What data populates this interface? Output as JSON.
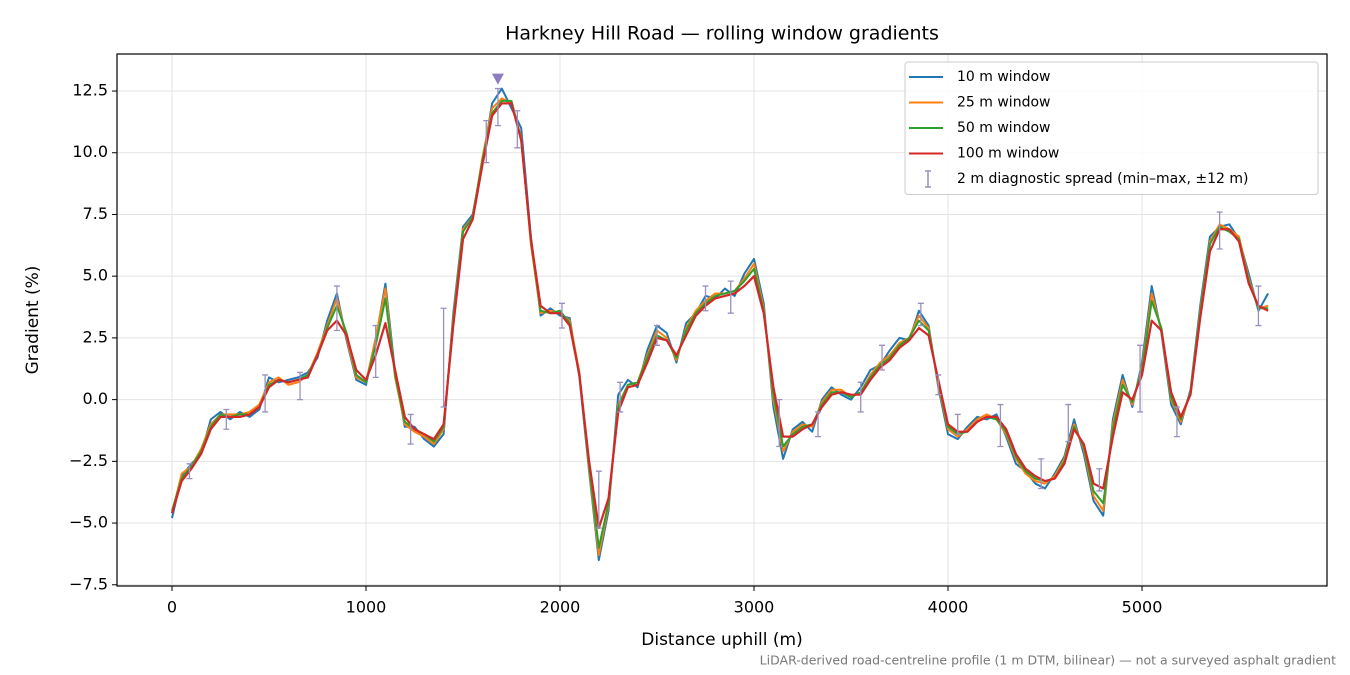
{
  "chart_data": {
    "type": "line",
    "title": "Harkney Hill Road — rolling window gradients",
    "x_label": "Distance uphill (m)",
    "y_label": "Gradient (%)",
    "note": "LiDAR-derived road-centreline profile (1 m DTM, bilinear) — not a surveyed asphalt gradient",
    "xlim": [
      -283.5,
      5953.5
    ],
    "ylim": [
      -7.55,
      14.0
    ],
    "xticks": [
      0,
      1000,
      2000,
      3000,
      4000,
      5000
    ],
    "yticks": [
      {
        "value": -7.5,
        "label": "−7.5"
      },
      {
        "value": -5,
        "label": "−5.0"
      },
      {
        "value": -2.5,
        "label": "−2.5"
      },
      {
        "value": 0,
        "label": "0.0"
      },
      {
        "value": 2.5,
        "label": "2.5"
      },
      {
        "value": 5,
        "label": "5.0"
      },
      {
        "value": 7.5,
        "label": "7.5"
      },
      {
        "value": 10,
        "label": "10.0"
      },
      {
        "value": 12.5,
        "label": "12.5"
      }
    ],
    "grid": true,
    "legend": "upper right",
    "x": [
      0,
      50,
      100,
      150,
      200,
      250,
      300,
      350,
      400,
      450,
      500,
      550,
      600,
      650,
      700,
      750,
      800,
      850,
      900,
      950,
      1000,
      1050,
      1100,
      1150,
      1200,
      1250,
      1300,
      1350,
      1400,
      1450,
      1500,
      1550,
      1600,
      1650,
      1700,
      1750,
      1800,
      1850,
      1900,
      1950,
      2000,
      2050,
      2100,
      2150,
      2200,
      2250,
      2300,
      2350,
      2400,
      2450,
      2500,
      2550,
      2600,
      2650,
      2700,
      2750,
      2800,
      2850,
      2900,
      2950,
      3000,
      3050,
      3100,
      3150,
      3200,
      3250,
      3300,
      3350,
      3400,
      3450,
      3500,
      3550,
      3600,
      3650,
      3700,
      3750,
      3800,
      3850,
      3900,
      3950,
      4000,
      4050,
      4100,
      4150,
      4200,
      4250,
      4300,
      4350,
      4400,
      4450,
      4500,
      4550,
      4600,
      4650,
      4700,
      4750,
      4800,
      4850,
      4900,
      4950,
      5000,
      5050,
      5100,
      5150,
      5200,
      5250,
      5300,
      5350,
      5400,
      5450,
      5500,
      5550,
      5600,
      5650
    ],
    "series": [
      {
        "name": "10 m window",
        "color": "#1f77b4",
        "values": [
          -4.8,
          -3.1,
          -2.6,
          -2.2,
          -0.8,
          -0.5,
          -0.8,
          -0.5,
          -0.7,
          -0.4,
          0.9,
          0.7,
          0.8,
          0.9,
          1.1,
          1.7,
          3.2,
          4.3,
          2.4,
          0.8,
          0.6,
          2.4,
          4.7,
          1.1,
          -1.1,
          -1.1,
          -1.6,
          -1.9,
          -1.4,
          3.5,
          7.0,
          7.5,
          9.6,
          12.0,
          12.6,
          11.8,
          11.0,
          6.6,
          3.4,
          3.7,
          3.4,
          3.3,
          0.9,
          -2.9,
          -6.5,
          -4.5,
          0.2,
          0.8,
          0.5,
          2.0,
          3.0,
          2.7,
          1.5,
          3.1,
          3.5,
          4.2,
          4.1,
          4.5,
          4.2,
          5.1,
          5.7,
          3.9,
          -0.3,
          -2.4,
          -1.2,
          -0.9,
          -1.3,
          0.0,
          0.5,
          0.2,
          0.0,
          0.5,
          1.2,
          1.4,
          2.0,
          2.5,
          2.4,
          3.6,
          3.0,
          0.5,
          -1.4,
          -1.6,
          -1.1,
          -0.7,
          -0.8,
          -0.6,
          -1.5,
          -2.6,
          -2.9,
          -3.4,
          -3.6,
          -3.0,
          -2.3,
          -0.8,
          -2.2,
          -4.1,
          -4.7,
          -0.8,
          1.0,
          -0.3,
          1.5,
          4.6,
          2.7,
          -0.2,
          -1.0,
          0.4,
          3.8,
          6.6,
          7.0,
          7.1,
          6.5,
          5.1,
          3.6,
          4.3
        ]
      },
      {
        "name": "25 m window",
        "color": "#ff7f0e",
        "values": [
          -4.6,
          -3.0,
          -2.7,
          -2.0,
          -1.0,
          -0.6,
          -0.6,
          -0.6,
          -0.5,
          -0.2,
          0.7,
          0.9,
          0.6,
          0.7,
          1.0,
          1.9,
          3.0,
          4.1,
          2.5,
          0.9,
          0.7,
          2.5,
          4.5,
          0.9,
          -1.0,
          -1.3,
          -1.5,
          -1.8,
          -1.2,
          3.3,
          6.9,
          7.4,
          9.8,
          11.8,
          12.2,
          12.0,
          10.6,
          6.3,
          3.5,
          3.6,
          3.5,
          3.2,
          1.1,
          -2.8,
          -6.3,
          -4.3,
          -0.2,
          0.6,
          0.7,
          1.8,
          2.8,
          2.5,
          1.6,
          2.9,
          3.6,
          4.0,
          4.3,
          4.3,
          4.4,
          4.9,
          5.5,
          3.7,
          0.0,
          -2.1,
          -1.3,
          -1.0,
          -1.1,
          -0.1,
          0.4,
          0.4,
          0.1,
          0.3,
          1.0,
          1.5,
          1.8,
          2.3,
          2.5,
          3.4,
          2.9,
          0.6,
          -1.2,
          -1.5,
          -1.2,
          -0.8,
          -0.6,
          -0.8,
          -1.4,
          -2.4,
          -3.0,
          -3.3,
          -3.4,
          -3.1,
          -2.4,
          -1.0,
          -2.0,
          -3.9,
          -4.5,
          -1.0,
          0.8,
          -0.2,
          1.3,
          4.3,
          2.8,
          0.0,
          -0.9,
          0.3,
          3.6,
          6.4,
          7.1,
          6.9,
          6.6,
          4.9,
          3.7,
          3.8
        ]
      },
      {
        "name": "50 m window",
        "color": "#2ca02c",
        "values": [
          -4.5,
          -3.2,
          -2.7,
          -2.1,
          -1.1,
          -0.6,
          -0.7,
          -0.6,
          -0.6,
          -0.3,
          0.6,
          0.8,
          0.7,
          0.8,
          1.0,
          1.8,
          2.9,
          3.8,
          2.7,
          1.0,
          0.7,
          2.2,
          4.1,
          1.0,
          -0.9,
          -1.2,
          -1.4,
          -1.7,
          -1.1,
          3.2,
          6.8,
          7.4,
          9.7,
          11.6,
          12.1,
          12.1,
          10.5,
          6.4,
          3.6,
          3.5,
          3.6,
          3.1,
          1.0,
          -2.7,
          -6.0,
          -4.2,
          -0.3,
          0.6,
          0.7,
          1.7,
          2.6,
          2.4,
          1.7,
          2.8,
          3.5,
          3.9,
          4.2,
          4.3,
          4.4,
          4.8,
          5.3,
          3.6,
          0.2,
          -1.9,
          -1.4,
          -1.1,
          -1.0,
          -0.2,
          0.3,
          0.3,
          0.1,
          0.3,
          0.9,
          1.4,
          1.7,
          2.2,
          2.5,
          3.2,
          2.8,
          0.7,
          -1.1,
          -1.4,
          -1.3,
          -0.9,
          -0.7,
          -0.8,
          -1.3,
          -2.3,
          -2.9,
          -3.2,
          -3.3,
          -3.2,
          -2.5,
          -1.1,
          -1.9,
          -3.7,
          -4.2,
          -1.2,
          0.6,
          -0.1,
          1.2,
          4.0,
          2.9,
          0.1,
          -0.8,
          0.3,
          3.5,
          6.3,
          7.0,
          6.8,
          6.5,
          4.8,
          3.7,
          3.7
        ]
      },
      {
        "name": "100 m window",
        "color": "#d62728",
        "values": [
          -4.6,
          -3.3,
          -2.8,
          -2.2,
          -1.2,
          -0.7,
          -0.7,
          -0.7,
          -0.6,
          -0.3,
          0.5,
          0.8,
          0.7,
          0.8,
          0.9,
          1.8,
          2.8,
          3.2,
          2.6,
          1.2,
          0.8,
          1.8,
          3.1,
          1.2,
          -0.7,
          -1.2,
          -1.4,
          -1.6,
          -1.0,
          3.0,
          6.5,
          7.3,
          9.5,
          11.5,
          12.0,
          12.0,
          10.5,
          6.5,
          3.8,
          3.5,
          3.5,
          3.0,
          1.0,
          -2.5,
          -5.2,
          -4.0,
          -0.5,
          0.5,
          0.6,
          1.5,
          2.5,
          2.4,
          1.8,
          2.6,
          3.4,
          3.8,
          4.1,
          4.2,
          4.3,
          4.6,
          5.0,
          3.5,
          0.5,
          -1.5,
          -1.5,
          -1.2,
          -1.0,
          -0.3,
          0.2,
          0.3,
          0.2,
          0.2,
          0.8,
          1.3,
          1.6,
          2.1,
          2.4,
          2.9,
          2.6,
          0.8,
          -1.0,
          -1.3,
          -1.3,
          -0.9,
          -0.7,
          -0.7,
          -1.2,
          -2.2,
          -2.8,
          -3.1,
          -3.3,
          -3.2,
          -2.6,
          -1.2,
          -1.8,
          -3.4,
          -3.6,
          -1.5,
          0.3,
          0.0,
          1.0,
          3.2,
          2.8,
          0.3,
          -0.7,
          0.2,
          3.3,
          6.0,
          6.9,
          6.9,
          6.4,
          4.7,
          3.8,
          3.6
        ]
      }
    ],
    "errorbars": {
      "name": "2 m diagnostic spread (min–max, ±12 m)",
      "color": "#9a90c0",
      "x": [
        90,
        280,
        480,
        660,
        850,
        1050,
        1230,
        1400,
        1620,
        1680,
        1780,
        2010,
        2200,
        2310,
        2500,
        2750,
        2880,
        3130,
        3330,
        3550,
        3660,
        3860,
        3950,
        4050,
        4270,
        4480,
        4620,
        4780,
        4990,
        5180,
        5400,
        5600
      ],
      "low": [
        -3.2,
        -1.2,
        -0.5,
        0.0,
        2.8,
        0.9,
        -1.8,
        -0.3,
        9.6,
        11.1,
        10.2,
        2.9,
        -5.2,
        -0.5,
        2.2,
        3.6,
        3.5,
        -1.9,
        -1.5,
        -0.5,
        1.2,
        3.0,
        0.2,
        -1.4,
        -1.9,
        -3.6,
        -1.7,
        -3.7,
        -0.5,
        -1.5,
        6.1,
        3.0
      ],
      "high": [
        -2.6,
        -0.4,
        1.0,
        1.1,
        4.6,
        3.0,
        -0.6,
        3.7,
        11.3,
        12.6,
        11.7,
        3.9,
        -2.9,
        0.7,
        3.0,
        4.6,
        4.8,
        0.0,
        -0.5,
        0.7,
        2.2,
        3.9,
        1.0,
        -0.6,
        -0.2,
        -2.4,
        -0.2,
        -2.8,
        2.2,
        -0.3,
        7.6,
        4.6
      ]
    },
    "peak_marker": {
      "x": 1680,
      "y": 13.0,
      "color": "#8e7cc3"
    }
  }
}
